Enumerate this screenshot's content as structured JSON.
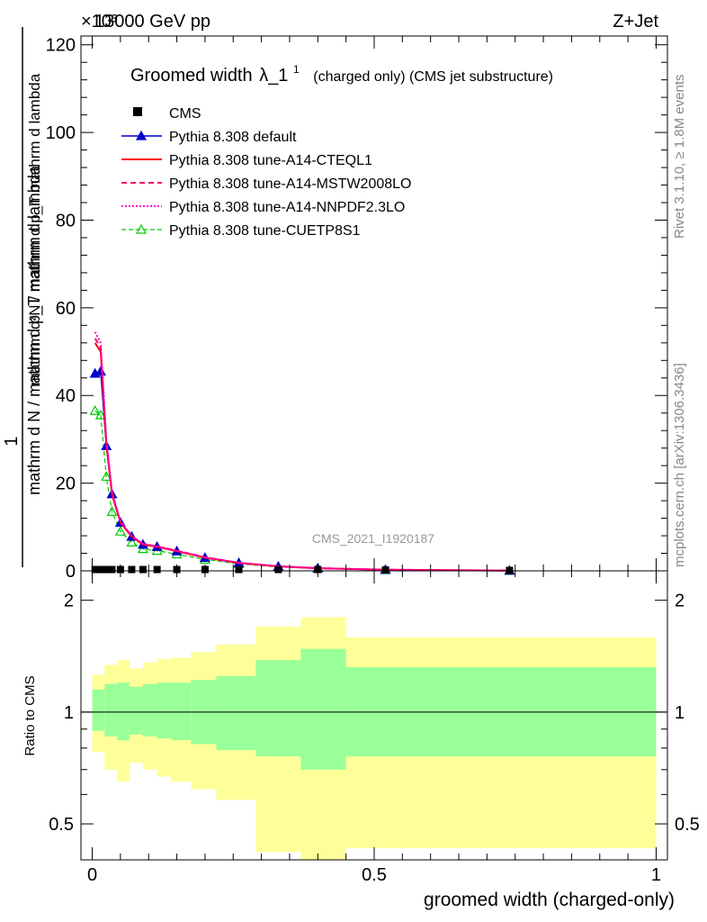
{
  "header": {
    "energy_label": "13000 GeV pp",
    "process_label": "Z+Jet",
    "exponent_label": "×10³",
    "rivet_label": "Rivet 3.1.10, ≥ 1.8M events",
    "mcplots_label": "mcplots.cern.ch [arXiv:1306.3436]",
    "analysis_label": "CMS_2021_I1920187"
  },
  "title": {
    "main": "Groomed width",
    "lambda": "λ_1",
    "sup": "1",
    "sub": "(charged only) (CMS jet substructure)"
  },
  "axes": {
    "ylabel_top_numer": "1",
    "ylabel_top_denom": "mathrm d N / mathrm d p_T mathrm d lambda",
    "ylabel_top_right": "mathrm d²N / mathrm d p_T mathrm d lambda",
    "ylabel_bottom": "Ratio to CMS",
    "xlabel": "groomed width (charged-only)",
    "x_ticks": [
      "0",
      "0.5",
      "1"
    ],
    "y_ticks_top": [
      "0",
      "20",
      "40",
      "60",
      "80",
      "100",
      "120"
    ],
    "y_ticks_bottom": [
      "0.5",
      "1",
      "2"
    ]
  },
  "colors": {
    "cms": "#000000",
    "default": "#0000cc",
    "cteql1": "#ff0000",
    "mstw": "#ff0066",
    "nnpdf": "#ff00cc",
    "cuetp8s1": "#00cc00",
    "band_inner": "#99ff99",
    "band_outer": "#ffff99"
  },
  "chart_data": {
    "type": "line",
    "x_range": [
      -0.02,
      1.02
    ],
    "y_range": [
      0,
      122000
    ],
    "ratio_range": [
      0.4,
      2.4
    ],
    "ratio_log": true,
    "x": [
      0.005,
      0.015,
      0.025,
      0.035,
      0.05,
      0.07,
      0.09,
      0.115,
      0.15,
      0.2,
      0.26,
      0.33,
      0.4,
      0.52,
      0.74
    ],
    "series": [
      {
        "name": "CMS",
        "key": "cms",
        "values": [
          300,
          300,
          300,
          300,
          300,
          300,
          300,
          300,
          300,
          300,
          300,
          300,
          300,
          200,
          100
        ]
      },
      {
        "name": "Pythia 8.308 default",
        "key": "default",
        "values": [
          45000,
          45500,
          28500,
          17500,
          11000,
          7800,
          6000,
          5500,
          4500,
          3000,
          1800,
          1000,
          600,
          250,
          60
        ]
      },
      {
        "name": "Pythia 8.308 tune-A14-CTEQL1",
        "key": "cteql1",
        "values": [
          52000,
          50000,
          29000,
          17500,
          11000,
          7800,
          6000,
          5500,
          4500,
          3000,
          1800,
          1000,
          600,
          250,
          60
        ]
      },
      {
        "name": "Pythia 8.308 tune-A14-MSTW2008LO",
        "key": "mstw",
        "values": [
          53000,
          51000,
          29500,
          17800,
          11200,
          7900,
          6100,
          5600,
          4600,
          3100,
          1850,
          1050,
          620,
          260,
          60
        ]
      },
      {
        "name": "Pythia 8.308 tune-A14-NNPDF2.3LO",
        "key": "nnpdf",
        "values": [
          54500,
          52000,
          30000,
          18000,
          11300,
          8000,
          6200,
          5600,
          4600,
          3100,
          1850,
          1050,
          620,
          260,
          60
        ]
      },
      {
        "name": "Pythia 8.308 tune-CUETP8S1",
        "key": "cuetp8s1",
        "values": [
          36500,
          35500,
          21500,
          13500,
          9000,
          6500,
          5000,
          4600,
          3800,
          2600,
          1600,
          900,
          550,
          230,
          50
        ]
      }
    ],
    "ratio_bands": {
      "edges": [
        0,
        0.022,
        0.044,
        0.066,
        0.09,
        0.115,
        0.14,
        0.175,
        0.22,
        0.29,
        0.37,
        0.45,
        1.0
      ],
      "inner_low": [
        0.89,
        0.86,
        0.84,
        0.87,
        0.86,
        0.85,
        0.84,
        0.82,
        0.79,
        0.76,
        0.7,
        0.76
      ],
      "inner_high": [
        1.15,
        1.19,
        1.2,
        1.17,
        1.19,
        1.2,
        1.2,
        1.22,
        1.25,
        1.38,
        1.48,
        1.32
      ],
      "outer_low": [
        0.78,
        0.7,
        0.65,
        0.73,
        0.7,
        0.67,
        0.65,
        0.62,
        0.58,
        0.42,
        0.38,
        0.43
      ],
      "outer_high": [
        1.26,
        1.34,
        1.38,
        1.31,
        1.36,
        1.39,
        1.4,
        1.45,
        1.52,
        1.7,
        1.8,
        1.59
      ]
    }
  }
}
